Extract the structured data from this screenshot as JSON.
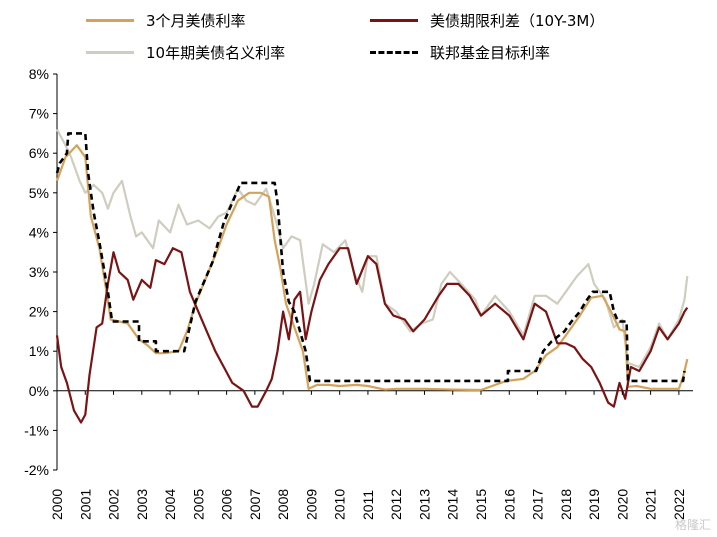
{
  "chart_data": {
    "type": "line",
    "title": "",
    "xlabel": "",
    "ylabel": "",
    "ylim": [
      -2,
      8
    ],
    "xlim": [
      2000,
      2022.5
    ],
    "y_ticks": [
      "8%",
      "7%",
      "6%",
      "5%",
      "4%",
      "3%",
      "2%",
      "1%",
      "0%",
      "-1%",
      "-2%"
    ],
    "x_ticks": [
      "2000",
      "2001",
      "2002",
      "2003",
      "2004",
      "2005",
      "2006",
      "2007",
      "2008",
      "2009",
      "2010",
      "2011",
      "2012",
      "2013",
      "2014",
      "2015",
      "2016",
      "2017",
      "2018",
      "2019",
      "2020",
      "2021",
      "2022"
    ],
    "legend_position": "top",
    "series": [
      {
        "name": "3个月美债利率",
        "color": "#d4a25a",
        "style": "solid",
        "points": [
          [
            2000,
            5.3
          ],
          [
            2000.3,
            5.9
          ],
          [
            2000.7,
            6.2
          ],
          [
            2001,
            5.9
          ],
          [
            2001.2,
            4.4
          ],
          [
            2001.5,
            3.6
          ],
          [
            2001.75,
            2.5
          ],
          [
            2001.9,
            1.8
          ],
          [
            2002.5,
            1.7
          ],
          [
            2002.9,
            1.3
          ],
          [
            2003.2,
            1.15
          ],
          [
            2003.5,
            0.95
          ],
          [
            2003.8,
            0.95
          ],
          [
            2004.3,
            1.0
          ],
          [
            2004.6,
            1.5
          ],
          [
            2004.9,
            2.2
          ],
          [
            2005.3,
            2.9
          ],
          [
            2005.7,
            3.6
          ],
          [
            2006,
            4.2
          ],
          [
            2006.4,
            4.8
          ],
          [
            2006.8,
            5.0
          ],
          [
            2007.2,
            5.0
          ],
          [
            2007.5,
            4.9
          ],
          [
            2007.7,
            3.8
          ],
          [
            2007.9,
            3.1
          ],
          [
            2008.1,
            2.2
          ],
          [
            2008.4,
            1.6
          ],
          [
            2008.7,
            1.0
          ],
          [
            2008.9,
            0.05
          ],
          [
            2009.2,
            0.15
          ],
          [
            2009.6,
            0.15
          ],
          [
            2010,
            0.12
          ],
          [
            2010.6,
            0.15
          ],
          [
            2011,
            0.12
          ],
          [
            2011.6,
            0.03
          ],
          [
            2012,
            0.05
          ],
          [
            2013,
            0.05
          ],
          [
            2014,
            0.03
          ],
          [
            2015,
            0.02
          ],
          [
            2015.9,
            0.25
          ],
          [
            2016.5,
            0.3
          ],
          [
            2016.9,
            0.5
          ],
          [
            2017.3,
            0.9
          ],
          [
            2017.7,
            1.1
          ],
          [
            2018,
            1.4
          ],
          [
            2018.5,
            1.9
          ],
          [
            2018.9,
            2.35
          ],
          [
            2019.3,
            2.4
          ],
          [
            2019.6,
            2.0
          ],
          [
            2019.9,
            1.55
          ],
          [
            2020.1,
            1.5
          ],
          [
            2020.2,
            0.1
          ],
          [
            2020.5,
            0.12
          ],
          [
            2021,
            0.05
          ],
          [
            2021.5,
            0.05
          ],
          [
            2022,
            0.05
          ],
          [
            2022.15,
            0.35
          ],
          [
            2022.3,
            0.8
          ]
        ]
      },
      {
        "name": "美债期限利差（10Y-3M）",
        "color": "#7a1414",
        "style": "solid",
        "points": [
          [
            2000,
            1.4
          ],
          [
            2000.15,
            0.6
          ],
          [
            2000.35,
            0.2
          ],
          [
            2000.6,
            -0.5
          ],
          [
            2000.85,
            -0.8
          ],
          [
            2001,
            -0.6
          ],
          [
            2001.15,
            0.4
          ],
          [
            2001.4,
            1.6
          ],
          [
            2001.6,
            1.7
          ],
          [
            2001.8,
            2.7
          ],
          [
            2002,
            3.5
          ],
          [
            2002.2,
            3.0
          ],
          [
            2002.5,
            2.8
          ],
          [
            2002.7,
            2.3
          ],
          [
            2003,
            2.8
          ],
          [
            2003.3,
            2.6
          ],
          [
            2003.5,
            3.3
          ],
          [
            2003.8,
            3.2
          ],
          [
            2004.1,
            3.6
          ],
          [
            2004.4,
            3.5
          ],
          [
            2004.7,
            2.5
          ],
          [
            2005,
            2.0
          ],
          [
            2005.3,
            1.5
          ],
          [
            2005.6,
            1.0
          ],
          [
            2005.9,
            0.6
          ],
          [
            2006.2,
            0.2
          ],
          [
            2006.6,
            0.0
          ],
          [
            2006.9,
            -0.4
          ],
          [
            2007.1,
            -0.4
          ],
          [
            2007.4,
            0.0
          ],
          [
            2007.6,
            0.3
          ],
          [
            2007.8,
            1.0
          ],
          [
            2008,
            2.0
          ],
          [
            2008.2,
            1.3
          ],
          [
            2008.4,
            2.3
          ],
          [
            2008.6,
            2.5
          ],
          [
            2008.8,
            1.3
          ],
          [
            2009,
            2.0
          ],
          [
            2009.3,
            2.8
          ],
          [
            2009.6,
            3.2
          ],
          [
            2010,
            3.6
          ],
          [
            2010.3,
            3.6
          ],
          [
            2010.6,
            2.7
          ],
          [
            2011,
            3.4
          ],
          [
            2011.3,
            3.2
          ],
          [
            2011.6,
            2.2
          ],
          [
            2011.9,
            1.9
          ],
          [
            2012.3,
            1.8
          ],
          [
            2012.6,
            1.5
          ],
          [
            2013,
            1.8
          ],
          [
            2013.5,
            2.4
          ],
          [
            2013.8,
            2.7
          ],
          [
            2014.2,
            2.7
          ],
          [
            2014.6,
            2.4
          ],
          [
            2015,
            1.9
          ],
          [
            2015.5,
            2.2
          ],
          [
            2016,
            1.9
          ],
          [
            2016.5,
            1.3
          ],
          [
            2016.9,
            2.2
          ],
          [
            2017.3,
            2.0
          ],
          [
            2017.7,
            1.2
          ],
          [
            2018,
            1.2
          ],
          [
            2018.3,
            1.1
          ],
          [
            2018.6,
            0.8
          ],
          [
            2018.9,
            0.6
          ],
          [
            2019.2,
            0.2
          ],
          [
            2019.5,
            -0.3
          ],
          [
            2019.7,
            -0.4
          ],
          [
            2019.9,
            0.2
          ],
          [
            2020.1,
            -0.2
          ],
          [
            2020.3,
            0.6
          ],
          [
            2020.6,
            0.5
          ],
          [
            2021,
            1.0
          ],
          [
            2021.3,
            1.6
          ],
          [
            2021.6,
            1.3
          ],
          [
            2022,
            1.7
          ],
          [
            2022.2,
            2.0
          ],
          [
            2022.3,
            2.1
          ]
        ]
      },
      {
        "name": "10年期美债名义利率",
        "color": "#cfcdbf",
        "style": "solid",
        "points": [
          [
            2000,
            6.6
          ],
          [
            2000.3,
            6.2
          ],
          [
            2000.5,
            5.9
          ],
          [
            2000.8,
            5.3
          ],
          [
            2001,
            5.0
          ],
          [
            2001.3,
            5.2
          ],
          [
            2001.6,
            5.0
          ],
          [
            2001.8,
            4.6
          ],
          [
            2002,
            5.0
          ],
          [
            2002.3,
            5.3
          ],
          [
            2002.6,
            4.4
          ],
          [
            2002.8,
            3.9
          ],
          [
            2003,
            4.0
          ],
          [
            2003.4,
            3.6
          ],
          [
            2003.6,
            4.3
          ],
          [
            2004,
            4.0
          ],
          [
            2004.3,
            4.7
          ],
          [
            2004.6,
            4.2
          ],
          [
            2005,
            4.3
          ],
          [
            2005.4,
            4.1
          ],
          [
            2005.7,
            4.4
          ],
          [
            2006,
            4.5
          ],
          [
            2006.4,
            5.1
          ],
          [
            2006.7,
            4.8
          ],
          [
            2007,
            4.7
          ],
          [
            2007.4,
            5.1
          ],
          [
            2007.7,
            4.4
          ],
          [
            2008,
            3.6
          ],
          [
            2008.3,
            3.9
          ],
          [
            2008.6,
            3.8
          ],
          [
            2008.9,
            2.2
          ],
          [
            2009.1,
            2.7
          ],
          [
            2009.4,
            3.7
          ],
          [
            2009.8,
            3.5
          ],
          [
            2010.2,
            3.8
          ],
          [
            2010.5,
            3.0
          ],
          [
            2010.8,
            2.5
          ],
          [
            2011,
            3.4
          ],
          [
            2011.3,
            3.4
          ],
          [
            2011.6,
            2.2
          ],
          [
            2012,
            2.0
          ],
          [
            2012.5,
            1.5
          ],
          [
            2012.9,
            1.7
          ],
          [
            2013.3,
            1.8
          ],
          [
            2013.6,
            2.7
          ],
          [
            2013.9,
            3.0
          ],
          [
            2014.3,
            2.7
          ],
          [
            2014.8,
            2.3
          ],
          [
            2015,
            1.9
          ],
          [
            2015.5,
            2.4
          ],
          [
            2016,
            2.0
          ],
          [
            2016.5,
            1.4
          ],
          [
            2016.9,
            2.4
          ],
          [
            2017.3,
            2.4
          ],
          [
            2017.7,
            2.2
          ],
          [
            2018,
            2.5
          ],
          [
            2018.4,
            2.9
          ],
          [
            2018.8,
            3.2
          ],
          [
            2019,
            2.7
          ],
          [
            2019.4,
            2.3
          ],
          [
            2019.7,
            1.6
          ],
          [
            2020,
            1.8
          ],
          [
            2020.2,
            0.7
          ],
          [
            2020.6,
            0.6
          ],
          [
            2021,
            1.1
          ],
          [
            2021.3,
            1.7
          ],
          [
            2021.6,
            1.3
          ],
          [
            2022,
            1.8
          ],
          [
            2022.2,
            2.3
          ],
          [
            2022.3,
            2.9
          ]
        ]
      },
      {
        "name": "联邦基金目标利率",
        "color": "#000000",
        "style": "dashed",
        "points": [
          [
            2000,
            5.5
          ],
          [
            2000.1,
            5.75
          ],
          [
            2000.35,
            6.0
          ],
          [
            2000.4,
            6.5
          ],
          [
            2001,
            6.5
          ],
          [
            2001.1,
            5.5
          ],
          [
            2001.3,
            4.5
          ],
          [
            2001.5,
            3.75
          ],
          [
            2001.8,
            2.5
          ],
          [
            2001.95,
            1.75
          ],
          [
            2002.9,
            1.75
          ],
          [
            2002.9,
            1.25
          ],
          [
            2003.5,
            1.25
          ],
          [
            2003.5,
            1.0
          ],
          [
            2004.5,
            1.0
          ],
          [
            2004.9,
            2.25
          ],
          [
            2005.5,
            3.25
          ],
          [
            2005.9,
            4.25
          ],
          [
            2006.5,
            5.25
          ],
          [
            2007.7,
            5.25
          ],
          [
            2007.8,
            4.75
          ],
          [
            2008,
            3.0
          ],
          [
            2008.2,
            2.25
          ],
          [
            2008.4,
            2.0
          ],
          [
            2008.8,
            1.0
          ],
          [
            2008.95,
            0.25
          ],
          [
            2015.95,
            0.25
          ],
          [
            2015.95,
            0.5
          ],
          [
            2016.95,
            0.5
          ],
          [
            2017.2,
            1.0
          ],
          [
            2017.5,
            1.25
          ],
          [
            2017.95,
            1.5
          ],
          [
            2018.2,
            1.75
          ],
          [
            2018.5,
            2.0
          ],
          [
            2018.7,
            2.25
          ],
          [
            2018.95,
            2.5
          ],
          [
            2019.55,
            2.5
          ],
          [
            2019.7,
            2.0
          ],
          [
            2019.85,
            1.75
          ],
          [
            2020.15,
            1.75
          ],
          [
            2020.2,
            0.25
          ],
          [
            2022.15,
            0.25
          ],
          [
            2022.2,
            0.5
          ]
        ]
      }
    ]
  },
  "watermark": "格隆汇"
}
